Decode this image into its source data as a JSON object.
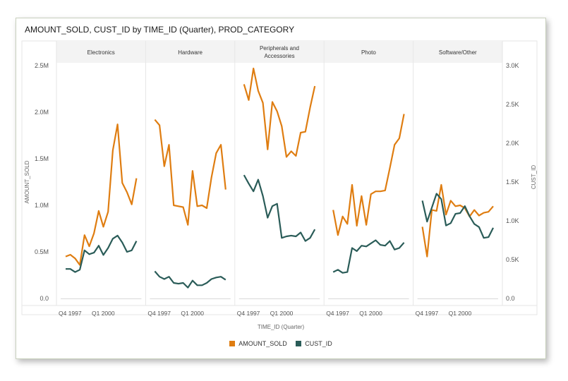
{
  "title": "AMOUNT_SOLD, CUST_ID by TIME_ID (Quarter), PROD_CATEGORY",
  "colors": {
    "amount": "#df7d11",
    "cust": "#2a5c58",
    "grid": "#e6e6e6",
    "header_bg": "#f3f3f3"
  },
  "chart_data": {
    "type": "line",
    "title": "AMOUNT_SOLD, CUST_ID by TIME_ID (Quarter), PROD_CATEGORY",
    "xlabel": "TIME_ID (Quarter)",
    "ylabel_left": "AMOUNT_SOLD",
    "ylabel_right": "CUST_ID",
    "ylim_left": [
      0,
      2500000
    ],
    "ylim_right": [
      0,
      3000
    ],
    "yticks_left": [
      "0.0",
      "0.5M",
      "1.0M",
      "1.5M",
      "2.0M",
      "2.5M"
    ],
    "yticks_right": [
      "0.0",
      "0.5K",
      "1.0K",
      "1.5K",
      "2.0K",
      "2.5K",
      "3.0K"
    ],
    "xticks": [
      "Q4 1997",
      "Q1 2000"
    ],
    "legend_position": "bottom",
    "series_names": [
      "AMOUNT_SOLD",
      "CUST_ID"
    ],
    "panels": [
      {
        "name": "Electronics",
        "amount_sold": [
          450000,
          470000,
          430000,
          360000,
          680000,
          560000,
          700000,
          940000,
          770000,
          930000,
          1590000,
          1870000,
          1240000,
          1140000,
          1010000,
          1290000
        ],
        "cust_id": [
          380,
          380,
          340,
          370,
          620,
          570,
          590,
          680,
          560,
          650,
          770,
          810,
          720,
          600,
          620,
          740
        ]
      },
      {
        "name": "Hardware",
        "amount_sold": [
          1920000,
          1860000,
          1420000,
          1650000,
          1000000,
          990000,
          980000,
          790000,
          1370000,
          990000,
          1000000,
          970000,
          1300000,
          1560000,
          1650000,
          1170000
        ],
        "cust_id": [
          350,
          280,
          250,
          280,
          200,
          190,
          200,
          140,
          230,
          170,
          170,
          200,
          250,
          270,
          280,
          240
        ]
      },
      {
        "name": "Peripherals and Accessories",
        "amount_sold": [
          2300000,
          2130000,
          2470000,
          2230000,
          2100000,
          1600000,
          2110000,
          2010000,
          1850000,
          1520000,
          1580000,
          1530000,
          1780000,
          1790000,
          2050000,
          2280000
        ],
        "cust_id": [
          1590,
          1480,
          1380,
          1530,
          1320,
          1040,
          1190,
          1220,
          780,
          800,
          810,
          800,
          850,
          740,
          780,
          890
        ]
      },
      {
        "name": "Photo",
        "amount_sold": [
          950000,
          680000,
          880000,
          800000,
          1220000,
          780000,
          1100000,
          790000,
          1120000,
          1150000,
          1150000,
          1160000,
          1400000,
          1650000,
          1720000,
          1980000
        ],
        "cust_id": [
          340,
          370,
          330,
          340,
          650,
          610,
          680,
          670,
          710,
          750,
          690,
          680,
          740,
          630,
          650,
          720
        ]
      },
      {
        "name": "Software/Other",
        "amount_sold": [
          770000,
          450000,
          950000,
          940000,
          1220000,
          900000,
          1050000,
          990000,
          1000000,
          970000,
          880000,
          950000,
          890000,
          920000,
          930000,
          990000
        ],
        "cust_id": [
          1260,
          990,
          1170,
          1350,
          1280,
          940,
          970,
          1090,
          1100,
          1190,
          1060,
          960,
          920,
          780,
          790,
          910
        ]
      }
    ]
  }
}
